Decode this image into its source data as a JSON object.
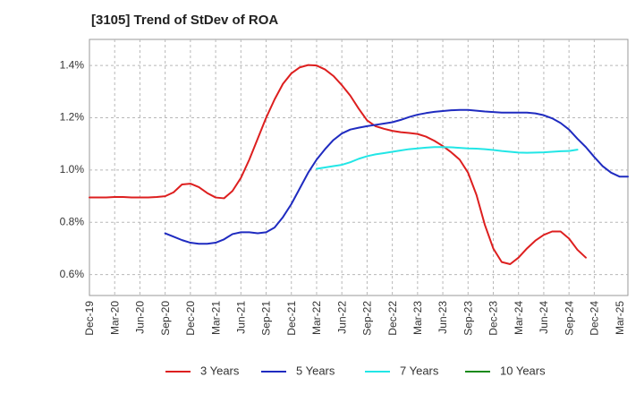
{
  "chart_data": {
    "type": "line",
    "title": "[3105]  Trend of StDev of ROA",
    "xlabel": "",
    "ylabel": "",
    "x_tick_labels": [
      "Dec-19",
      "Mar-20",
      "Jun-20",
      "Sep-20",
      "Dec-20",
      "Mar-21",
      "Jun-21",
      "Sep-21",
      "Dec-21",
      "Mar-22",
      "Jun-22",
      "Sep-22",
      "Dec-22",
      "Mar-23",
      "Jun-23",
      "Sep-23",
      "Dec-23",
      "Mar-24",
      "Jun-24",
      "Sep-24",
      "Dec-24",
      "Mar-25"
    ],
    "y_tick_labels": [
      "0.6%",
      "0.8%",
      "1.0%",
      "1.2%",
      "1.4%"
    ],
    "y_ticks": [
      0.6,
      0.8,
      1.0,
      1.2,
      1.4
    ],
    "ylim": [
      0.52,
      1.5
    ],
    "grid": "dashed vertical and horizontal",
    "legend_position": "bottom",
    "series": [
      {
        "name": "3 Years",
        "color": "#dd1f1f",
        "start_index": 0,
        "values": [
          0.895,
          0.895,
          0.895,
          0.897,
          0.897,
          0.895,
          0.895,
          0.895,
          0.897,
          0.9,
          0.915,
          0.945,
          0.948,
          0.935,
          0.912,
          0.895,
          0.892,
          0.92,
          0.97,
          1.04,
          1.12,
          1.2,
          1.27,
          1.33,
          1.37,
          1.393,
          1.402,
          1.4,
          1.385,
          1.36,
          1.325,
          1.285,
          1.235,
          1.19,
          1.168,
          1.158,
          1.15,
          1.145,
          1.142,
          1.138,
          1.128,
          1.112,
          1.092,
          1.068,
          1.04,
          0.99,
          0.905,
          0.79,
          0.7,
          0.648,
          0.64,
          0.665,
          0.7,
          0.73,
          0.752,
          0.765,
          0.765,
          0.738,
          0.695,
          0.665
        ]
      },
      {
        "name": "5 Years",
        "color": "#1f2bc0",
        "start_index": 9,
        "values": [
          0.758,
          0.745,
          0.732,
          0.722,
          0.718,
          0.718,
          0.722,
          0.735,
          0.755,
          0.762,
          0.762,
          0.758,
          0.762,
          0.78,
          0.82,
          0.87,
          0.93,
          0.99,
          1.04,
          1.08,
          1.115,
          1.14,
          1.155,
          1.162,
          1.168,
          1.173,
          1.178,
          1.183,
          1.192,
          1.203,
          1.212,
          1.218,
          1.223,
          1.226,
          1.229,
          1.23,
          1.23,
          1.227,
          1.224,
          1.222,
          1.22,
          1.22,
          1.22,
          1.22,
          1.217,
          1.21,
          1.198,
          1.18,
          1.155,
          1.12,
          1.088,
          1.05,
          1.015,
          0.99,
          0.975,
          0.975
        ]
      },
      {
        "name": "7 Years",
        "color": "#22e6e6",
        "start_index": 27,
        "values": [
          1.005,
          1.01,
          1.015,
          1.02,
          1.03,
          1.043,
          1.053,
          1.06,
          1.065,
          1.07,
          1.075,
          1.08,
          1.083,
          1.086,
          1.088,
          1.088,
          1.087,
          1.085,
          1.083,
          1.082,
          1.08,
          1.077,
          1.073,
          1.07,
          1.067,
          1.066,
          1.067,
          1.068,
          1.07,
          1.072,
          1.073,
          1.078
        ]
      },
      {
        "name": "10 Years",
        "color": "#1a8a1a",
        "start_index": 0,
        "values": []
      }
    ]
  }
}
